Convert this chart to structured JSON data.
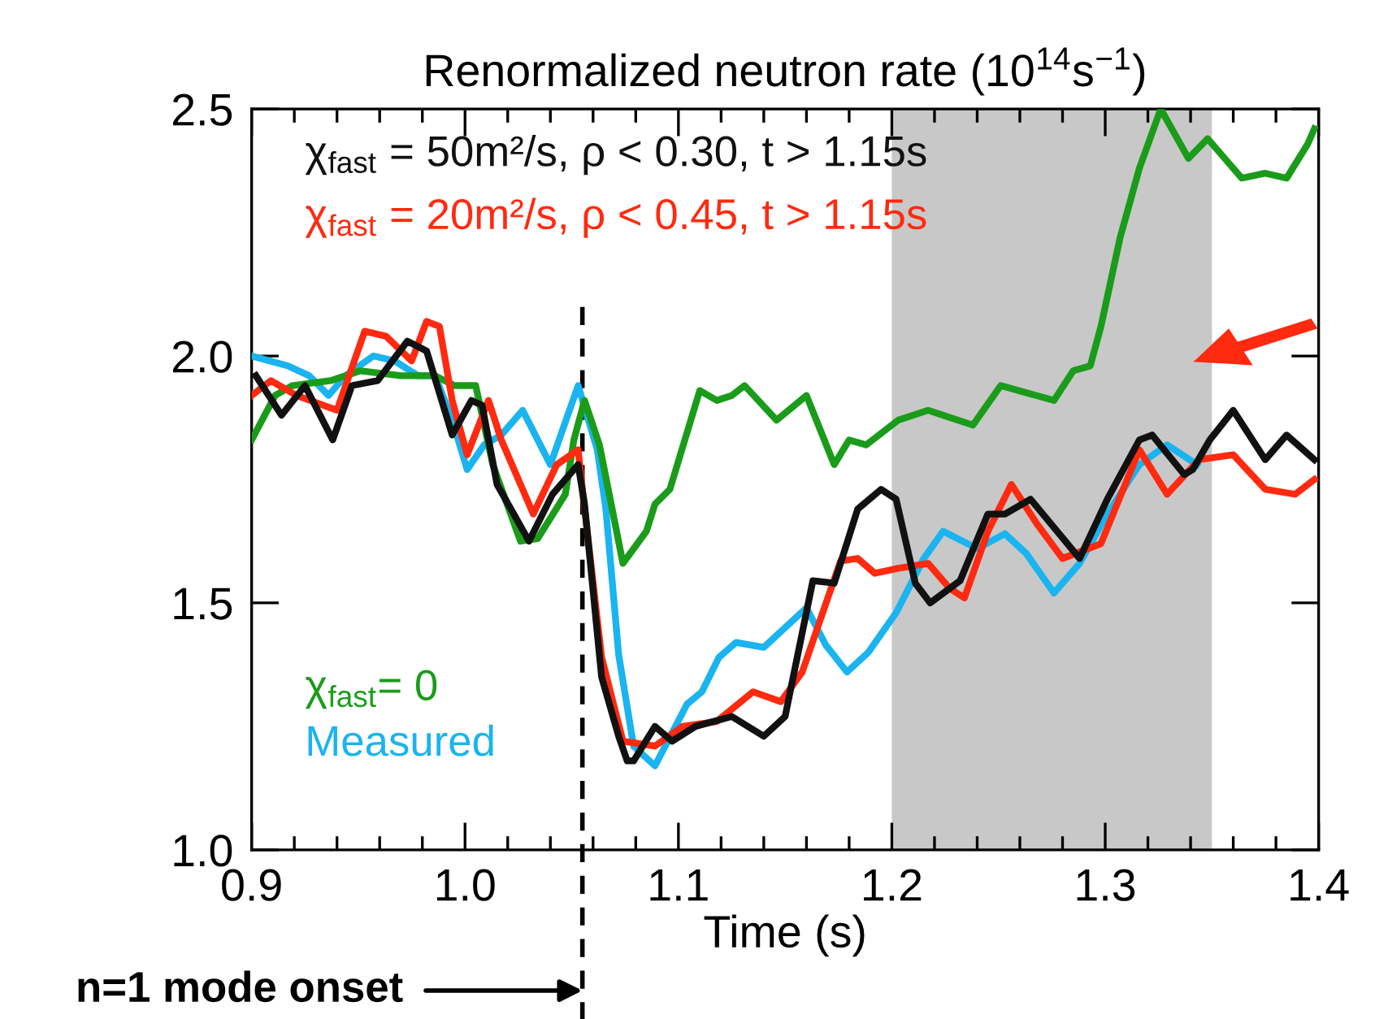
{
  "chart_data": {
    "type": "line",
    "title": "Renormalized neutron rate (10$^{14}$s$^{−1}$)",
    "xlabel": "Time (s)",
    "xlim": [
      0.9,
      1.4
    ],
    "xticks": [
      0.9,
      {
        "value": 1.0,
        "label": "1.0"
      },
      1.1,
      1.2,
      1.3,
      1.4
    ],
    "ylim": [
      1.0,
      2.5
    ],
    "yticks": [
      {
        "value": 1.0,
        "label": "1.0"
      },
      1.5,
      {
        "value": 2.0,
        "label": "2.0"
      },
      2.5
    ],
    "tick_labels": "xy",
    "grid": false,
    "legend": "left",
    "marker": "none",
    "line_style": "solid",
    "bands": [
      {
        "axis": "x",
        "from": 1.2,
        "to": 1.35,
        "color": "#c8c8c8"
      }
    ],
    "ref_lines": [
      {
        "axis": "x",
        "value": 1.055,
        "label": "n=1 mode onset",
        "color": "#000000",
        "line_style": "dashed"
      }
    ],
    "series": [
      {
        "name": "χ$_{fast}$ = 50m²/s, ρ < 0.30, t > 1.15s",
        "color": "#111111",
        "x": [
          0.902,
          0.914,
          0.925,
          0.938,
          0.947,
          0.959,
          0.973,
          0.982,
          0.994,
          1.003,
          1.008,
          1.015,
          1.03,
          1.041,
          1.053,
          1.056,
          1.064,
          1.072,
          1.076,
          1.079,
          1.089,
          1.097,
          1.108,
          1.125,
          1.14,
          1.15,
          1.163,
          1.173,
          1.184,
          1.195,
          1.202,
          1.211,
          1.218,
          1.232,
          1.245,
          1.253,
          1.265,
          1.288,
          1.301,
          1.316,
          1.322,
          1.337,
          1.341,
          1.349,
          1.36,
          1.375,
          1.385,
          1.398
        ],
        "values": [
          1.96,
          1.88,
          1.94,
          1.83,
          1.94,
          1.95,
          2.03,
          2.01,
          1.84,
          1.91,
          1.9,
          1.74,
          1.625,
          1.72,
          1.78,
          1.7,
          1.35,
          1.23,
          1.18,
          1.18,
          1.25,
          1.22,
          1.25,
          1.27,
          1.23,
          1.27,
          1.545,
          1.54,
          1.69,
          1.73,
          1.71,
          1.54,
          1.5,
          1.545,
          1.68,
          1.68,
          1.71,
          1.59,
          1.71,
          1.83,
          1.84,
          1.76,
          1.77,
          1.83,
          1.89,
          1.79,
          1.84,
          1.79
        ]
      },
      {
        "name": "χ$_{fast}$ = 20m²/s, ρ < 0.45, t > 1.15s",
        "color": "#ff2a10",
        "x": [
          0.9,
          0.909,
          0.921,
          0.94,
          0.953,
          0.963,
          0.975,
          0.982,
          0.988,
          0.994,
          1.001,
          1.011,
          1.017,
          1.032,
          1.043,
          1.053,
          1.055,
          1.064,
          1.074,
          1.089,
          1.102,
          1.118,
          1.135,
          1.148,
          1.158,
          1.166,
          1.176,
          1.184,
          1.192,
          1.203,
          1.217,
          1.227,
          1.234,
          1.245,
          1.256,
          1.268,
          1.28,
          1.298,
          1.316,
          1.329,
          1.344,
          1.36,
          1.375,
          1.389,
          1.398
        ],
        "values": [
          1.92,
          1.95,
          1.92,
          1.89,
          2.05,
          2.04,
          1.99,
          2.07,
          2.06,
          1.91,
          1.8,
          1.91,
          1.83,
          1.68,
          1.78,
          1.81,
          1.73,
          1.39,
          1.22,
          1.21,
          1.25,
          1.26,
          1.32,
          1.3,
          1.36,
          1.46,
          1.585,
          1.59,
          1.56,
          1.57,
          1.58,
          1.53,
          1.51,
          1.645,
          1.74,
          1.66,
          1.59,
          1.62,
          1.81,
          1.72,
          1.79,
          1.8,
          1.73,
          1.72,
          1.75
        ]
      },
      {
        "name": "χ$_{fast}$= 0",
        "color": "#1a9c1a",
        "x": [
          0.9,
          0.911,
          0.919,
          0.937,
          0.951,
          0.97,
          0.986,
          0.995,
          1.005,
          1.013,
          1.026,
          1.034,
          1.047,
          1.051,
          1.056,
          1.063,
          1.074,
          1.085,
          1.089,
          1.096,
          1.11,
          1.118,
          1.125,
          1.131,
          1.146,
          1.16,
          1.173,
          1.18,
          1.188,
          1.203,
          1.217,
          1.224,
          1.238,
          1.251,
          1.276,
          1.285,
          1.293,
          1.298,
          1.307,
          1.316,
          1.326,
          1.339,
          1.348,
          1.364,
          1.375,
          1.385,
          1.395,
          1.398
        ],
        "values": [
          1.83,
          1.92,
          1.94,
          1.95,
          1.97,
          1.96,
          1.96,
          1.94,
          1.94,
          1.78,
          1.625,
          1.63,
          1.72,
          1.83,
          1.91,
          1.82,
          1.58,
          1.645,
          1.7,
          1.73,
          1.93,
          1.91,
          1.92,
          1.94,
          1.87,
          1.92,
          1.78,
          1.83,
          1.82,
          1.87,
          1.89,
          1.88,
          1.86,
          1.94,
          1.91,
          1.97,
          1.98,
          2.06,
          2.24,
          2.38,
          2.5,
          2.4,
          2.44,
          2.36,
          2.37,
          2.36,
          2.43,
          2.46
        ]
      },
      {
        "name": "Measured",
        "color": "#1ab4f0",
        "x": [
          0.9,
          0.917,
          0.927,
          0.936,
          0.944,
          0.957,
          0.967,
          0.978,
          0.986,
          0.994,
          1.001,
          1.009,
          1.017,
          1.027,
          1.04,
          1.053,
          1.062,
          1.066,
          1.072,
          1.079,
          1.089,
          1.104,
          1.111,
          1.119,
          1.127,
          1.14,
          1.16,
          1.169,
          1.179,
          1.189,
          1.202,
          1.215,
          1.224,
          1.24,
          1.253,
          1.263,
          1.276,
          1.288,
          1.301,
          1.316,
          1.329,
          1.343
        ],
        "values": [
          2.0,
          1.98,
          1.96,
          1.92,
          1.96,
          2.0,
          1.99,
          1.96,
          1.96,
          1.87,
          1.77,
          1.82,
          1.84,
          1.89,
          1.78,
          1.94,
          1.81,
          1.69,
          1.395,
          1.21,
          1.17,
          1.295,
          1.32,
          1.39,
          1.42,
          1.41,
          1.49,
          1.415,
          1.36,
          1.4,
          1.48,
          1.59,
          1.645,
          1.61,
          1.64,
          1.6,
          1.52,
          1.58,
          1.68,
          1.78,
          1.82,
          1.78
        ]
      }
    ]
  }
}
